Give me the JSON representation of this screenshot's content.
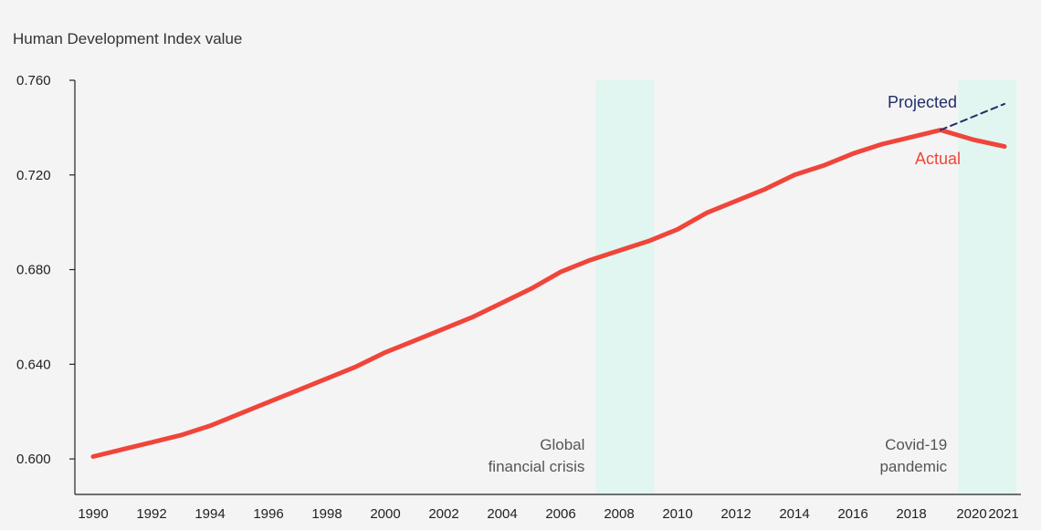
{
  "chart_data": {
    "type": "line",
    "ylabel": "Human Development Index value",
    "ylim": [
      0.585,
      0.76
    ],
    "y_ticks": [
      "0.600",
      "0.640",
      "0.680",
      "0.720",
      "0.760"
    ],
    "x_ticks": [
      "1990",
      "1992",
      "1994",
      "1996",
      "1998",
      "2000",
      "2002",
      "2004",
      "2006",
      "2008",
      "2010",
      "2012",
      "2014",
      "2016",
      "2018",
      "2020",
      "2021"
    ],
    "grid": false,
    "colors": {
      "actual": "#f0453a",
      "projected": "#1f2f6b",
      "shade": "#e1f6f0"
    },
    "series": [
      {
        "name": "Actual",
        "style": "solid",
        "x": [
          1990,
          1991,
          1992,
          1993,
          1994,
          1995,
          1996,
          1997,
          1998,
          1999,
          2000,
          2001,
          2002,
          2003,
          2004,
          2005,
          2006,
          2007,
          2008,
          2009,
          2010,
          2011,
          2012,
          2013,
          2014,
          2015,
          2016,
          2017,
          2018,
          2019,
          2020,
          2021
        ],
        "values": [
          0.601,
          0.604,
          0.607,
          0.61,
          0.614,
          0.619,
          0.624,
          0.629,
          0.634,
          0.639,
          0.645,
          0.65,
          0.655,
          0.66,
          0.666,
          0.672,
          0.679,
          0.684,
          0.688,
          0.692,
          0.697,
          0.704,
          0.709,
          0.714,
          0.72,
          0.724,
          0.729,
          0.733,
          0.736,
          0.739,
          0.735,
          0.732
        ]
      },
      {
        "name": "Projected",
        "style": "dashed",
        "x": [
          2019,
          2021
        ],
        "values": [
          0.739,
          0.75
        ]
      }
    ],
    "shaded_periods": [
      {
        "label_lines": [
          "Global",
          "financial crisis"
        ],
        "start": 2007.2,
        "end": 2009.2
      },
      {
        "label_lines": [
          "Covid-19",
          "pandemic"
        ],
        "start": 2019.6,
        "end": 2021.6
      }
    ]
  }
}
